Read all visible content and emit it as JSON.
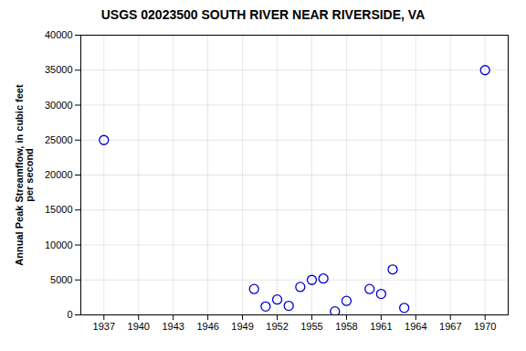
{
  "chart_data": {
    "type": "scatter",
    "title": "USGS 02023500 SOUTH RIVER NEAR RIVERSIDE, VA",
    "y_label": "Annual Peak Streamflow, in cubic feet\nper second",
    "x": [
      1937,
      1950,
      1951,
      1952,
      1953,
      1954,
      1955,
      1956,
      1957,
      1958,
      1960,
      1961,
      1962,
      1963,
      1970
    ],
    "values": [
      25000,
      3700,
      1200,
      2200,
      1300,
      4000,
      5000,
      5200,
      500,
      2000,
      3700,
      3000,
      6500,
      1000,
      35000
    ],
    "color": "#0000CC",
    "marker": "circle",
    "xlim": [
      1935,
      1972
    ],
    "xticks": [
      1937,
      1940,
      1943,
      1946,
      1949,
      1952,
      1955,
      1958,
      1961,
      1964,
      1967,
      1970
    ],
    "ylim": [
      0,
      40000
    ],
    "yticks": [
      0,
      5000,
      10000,
      15000,
      20000,
      25000,
      30000,
      35000,
      40000
    ],
    "grid": true
  }
}
